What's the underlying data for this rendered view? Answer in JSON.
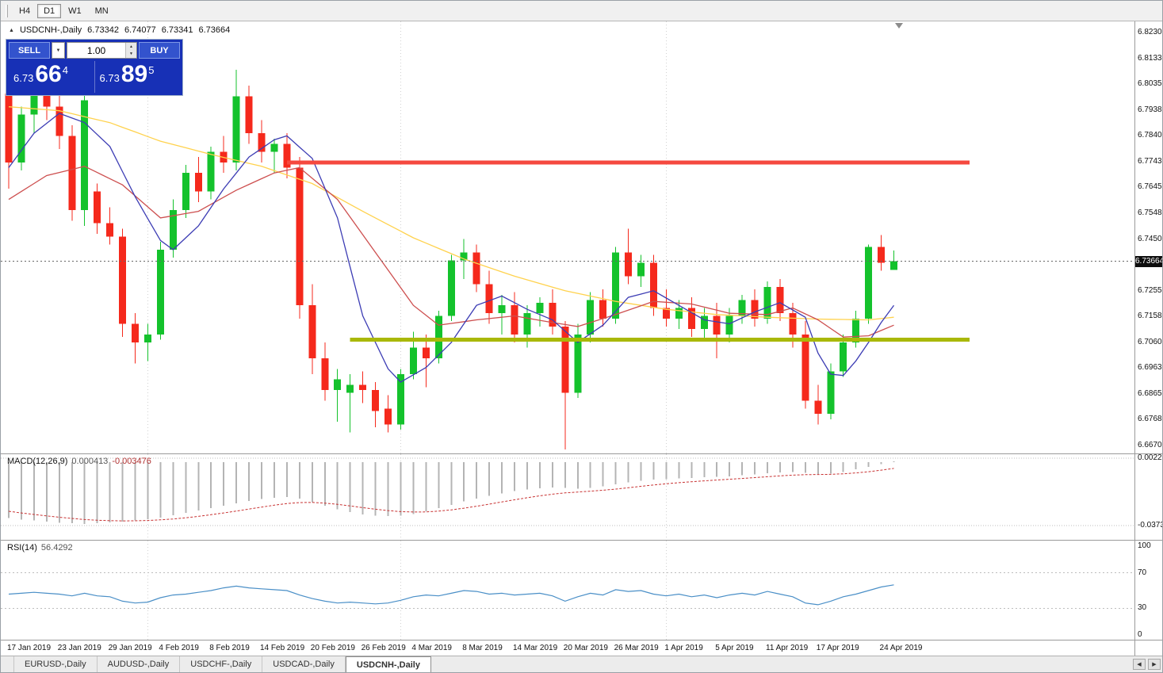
{
  "toolbar": {
    "timeframes": [
      {
        "label": "H4",
        "active": false
      },
      {
        "label": "D1",
        "active": true
      },
      {
        "label": "W1",
        "active": false
      },
      {
        "label": "MN",
        "active": false
      }
    ]
  },
  "chart_header": {
    "collapse_icon": "▲",
    "symbol": "USDCNH-,Daily",
    "open": "6.73342",
    "high": "6.74077",
    "low": "6.73341",
    "close": "6.73664"
  },
  "trade_panel": {
    "sell_label": "SELL",
    "buy_label": "BUY",
    "volume": "1.00",
    "dropdown_icon": "▼",
    "spin_up_icon": "▲",
    "spin_down_icon": "▼",
    "sell_price": {
      "small": "6.73",
      "big": "66",
      "sup": "4"
    },
    "buy_price": {
      "small": "6.73",
      "big": "89",
      "sup": "5"
    }
  },
  "macd_panel": {
    "title": "MACD(12,26,9)",
    "value_main": "0.000413",
    "value_signal": "-0.003476"
  },
  "rsi_panel": {
    "title": "RSI(14)",
    "value": "56.4292"
  },
  "tabs": {
    "items": [
      {
        "label": "EURUSD-,Daily",
        "active": false
      },
      {
        "label": "AUDUSD-,Daily",
        "active": false
      },
      {
        "label": "USDCHF-,Daily",
        "active": false
      },
      {
        "label": "USDCAD-,Daily",
        "active": false
      },
      {
        "label": "USDCNH-,Daily",
        "active": true
      }
    ]
  },
  "scroll_arrows": {
    "left": "◀",
    "right": "▶"
  },
  "colors": {
    "bull": "#14c22c",
    "bear": "#f5291c",
    "ma_fast": "#3c3cb4",
    "ma_mid": "#cd4f4f",
    "ma_slow": "#ffd24d",
    "resistance": "#f5493f",
    "support": "#a9b808",
    "macd_hist": "#b4b4b4",
    "macd_signal": "#c83232",
    "rsi_line": "#4a8fc7"
  },
  "chart_data": {
    "type": "candlestick",
    "symbol": "USDCNH",
    "timeframe": "Daily",
    "current_price": 6.73664,
    "visible_range": {
      "price_top": 6.82305,
      "price_bottom": 6.66705
    },
    "price_axis_labels": [
      "6.82305",
      "6.81330",
      "6.80355",
      "6.79380",
      "6.78405",
      "6.77430",
      "6.76455",
      "6.75480",
      "6.74505",
      "6.73530",
      "6.72555",
      "6.71580",
      "6.70605",
      "6.69630",
      "6.68655",
      "6.67680",
      "6.66705"
    ],
    "x_axis_labels": [
      {
        "text": "17 Jan 2019",
        "index": 0
      },
      {
        "text": "23 Jan 2019",
        "index": 4
      },
      {
        "text": "29 Jan 2019",
        "index": 8
      },
      {
        "text": "4 Feb 2019",
        "index": 12
      },
      {
        "text": "8 Feb 2019",
        "index": 16
      },
      {
        "text": "14 Feb 2019",
        "index": 20
      },
      {
        "text": "20 Feb 2019",
        "index": 24
      },
      {
        "text": "26 Feb 2019",
        "index": 28
      },
      {
        "text": "4 Mar 2019",
        "index": 32
      },
      {
        "text": "8 Mar 2019",
        "index": 36
      },
      {
        "text": "14 Mar 2019",
        "index": 40
      },
      {
        "text": "20 Mar 2019",
        "index": 44
      },
      {
        "text": "26 Mar 2019",
        "index": 48
      },
      {
        "text": "1 Apr 2019",
        "index": 52
      },
      {
        "text": "5 Apr 2019",
        "index": 56
      },
      {
        "text": "11 Apr 2019",
        "index": 60
      },
      {
        "text": "17 Apr 2019",
        "index": 64
      },
      {
        "text": "24 Apr 2019",
        "index": 69
      }
    ],
    "month_separator_indices": [
      11,
      31,
      52
    ],
    "ohlc": [
      [
        6.8,
        6.803,
        6.764,
        6.774
      ],
      [
        6.774,
        6.795,
        6.771,
        6.792
      ],
      [
        6.792,
        6.804,
        6.785,
        6.8
      ],
      [
        6.8,
        6.809,
        6.79,
        6.795
      ],
      [
        6.795,
        6.8,
        6.779,
        6.784
      ],
      [
        6.784,
        6.788,
        6.752,
        6.756
      ],
      [
        6.756,
        6.801,
        6.75,
        6.7975
      ],
      [
        6.763,
        6.766,
        6.747,
        6.751
      ],
      [
        6.751,
        6.757,
        6.743,
        6.746
      ],
      [
        6.746,
        6.749,
        6.708,
        6.713
      ],
      [
        6.713,
        6.717,
        6.698,
        6.706
      ],
      [
        6.706,
        6.713,
        6.699,
        6.709
      ],
      [
        6.709,
        6.744,
        6.707,
        6.741
      ],
      [
        6.741,
        6.76,
        6.738,
        6.756
      ],
      [
        6.756,
        6.773,
        6.753,
        6.77
      ],
      [
        6.77,
        6.776,
        6.759,
        6.763
      ],
      [
        6.763,
        6.78,
        6.76,
        6.778
      ],
      [
        6.778,
        6.784,
        6.77,
        6.774
      ],
      [
        6.774,
        6.809,
        6.771,
        6.799
      ],
      [
        6.799,
        6.803,
        6.781,
        6.785
      ],
      [
        6.785,
        6.79,
        6.774,
        6.778
      ],
      [
        6.778,
        6.783,
        6.77,
        6.781
      ],
      [
        6.781,
        6.785,
        6.768,
        6.772
      ],
      [
        6.772,
        6.776,
        6.715,
        6.72
      ],
      [
        6.72,
        6.728,
        6.694,
        6.7
      ],
      [
        6.7,
        6.706,
        6.684,
        6.688
      ],
      [
        6.688,
        6.696,
        6.676,
        6.692
      ],
      [
        6.687,
        6.694,
        6.672,
        6.69
      ],
      [
        6.69,
        6.695,
        6.683,
        6.688
      ],
      [
        6.688,
        6.691,
        6.674,
        6.68
      ],
      [
        6.681,
        6.686,
        6.672,
        6.675
      ],
      [
        6.675,
        6.696,
        6.673,
        6.694
      ],
      [
        6.694,
        6.71,
        6.692,
        6.704
      ],
      [
        6.704,
        6.709,
        6.689,
        6.7
      ],
      [
        6.7,
        6.718,
        6.698,
        6.716
      ],
      [
        6.716,
        6.739,
        6.714,
        6.737
      ],
      [
        6.737,
        6.745,
        6.73,
        6.74
      ],
      [
        6.74,
        6.743,
        6.725,
        6.728
      ],
      [
        6.728,
        6.733,
        6.713,
        6.717
      ],
      [
        6.717,
        6.724,
        6.709,
        6.72
      ],
      [
        6.72,
        6.725,
        6.706,
        6.709
      ],
      [
        6.709,
        6.72,
        6.704,
        6.717
      ],
      [
        6.717,
        6.723,
        6.712,
        6.721
      ],
      [
        6.721,
        6.726,
        6.709,
        6.712
      ],
      [
        6.712,
        6.714,
        6.6655,
        6.687
      ],
      [
        6.687,
        6.713,
        6.685,
        6.709
      ],
      [
        6.709,
        6.725,
        6.706,
        6.722
      ],
      [
        6.722,
        6.726,
        6.712,
        6.715
      ],
      [
        6.715,
        6.742,
        6.713,
        6.74
      ],
      [
        6.74,
        6.749,
        6.728,
        6.731
      ],
      [
        6.731,
        6.739,
        6.727,
        6.736
      ],
      [
        6.736,
        6.739,
        6.716,
        6.719
      ],
      [
        6.719,
        6.726,
        6.712,
        6.715
      ],
      [
        6.715,
        6.722,
        6.711,
        6.719
      ],
      [
        6.719,
        6.723,
        6.708,
        6.711
      ],
      [
        6.711,
        6.719,
        6.707,
        6.716
      ],
      [
        6.716,
        6.721,
        6.7,
        6.709
      ],
      [
        6.709,
        6.719,
        6.706,
        6.716
      ],
      [
        6.716,
        6.724,
        6.713,
        6.722
      ],
      [
        6.722,
        6.726,
        6.712,
        6.715
      ],
      [
        6.715,
        6.729,
        6.713,
        6.727
      ],
      [
        6.727,
        6.73,
        6.714,
        6.717
      ],
      [
        6.717,
        6.721,
        6.704,
        6.709
      ],
      [
        6.709,
        6.714,
        6.681,
        6.684
      ],
      [
        6.684,
        6.69,
        6.675,
        6.679
      ],
      [
        6.679,
        6.698,
        6.677,
        6.695
      ],
      [
        6.695,
        6.709,
        6.693,
        6.706
      ],
      [
        6.706,
        6.718,
        6.704,
        6.715
      ],
      [
        6.715,
        6.743,
        6.713,
        6.742
      ],
      [
        6.742,
        6.7465,
        6.733,
        6.736
      ],
      [
        6.73342,
        6.74077,
        6.73341,
        6.73664
      ]
    ],
    "hlines": [
      {
        "name": "resistance-line",
        "price": 6.774,
        "from_index": 22,
        "to_index": 76,
        "color_key": "resistance",
        "width": 5
      },
      {
        "name": "support-line",
        "price": 6.707,
        "from_index": 27,
        "to_index": 76,
        "color_key": "support",
        "width": 5
      }
    ],
    "ma_lines": [
      {
        "name": "ma-slow-yellow",
        "color_key": "ma_slow",
        "points": [
          [
            0,
            6.795
          ],
          [
            4,
            6.7935
          ],
          [
            8,
            6.789
          ],
          [
            12,
            6.782
          ],
          [
            16,
            6.777
          ],
          [
            20,
            6.7725
          ],
          [
            24,
            6.766
          ],
          [
            28,
            6.7555
          ],
          [
            32,
            6.7455
          ],
          [
            36,
            6.7375
          ],
          [
            40,
            6.731
          ],
          [
            44,
            6.7255
          ],
          [
            48,
            6.7215
          ],
          [
            52,
            6.7185
          ],
          [
            56,
            6.7165
          ],
          [
            60,
            6.7155
          ],
          [
            64,
            6.7148
          ],
          [
            68,
            6.7145
          ],
          [
            70,
            6.7155
          ]
        ]
      },
      {
        "name": "ma-mid-red",
        "color_key": "ma_mid",
        "points": [
          [
            0,
            6.76
          ],
          [
            3,
            6.769
          ],
          [
            6,
            6.7725
          ],
          [
            9,
            6.7655
          ],
          [
            12,
            6.753
          ],
          [
            15,
            6.7555
          ],
          [
            18,
            6.7635
          ],
          [
            21,
            6.77
          ],
          [
            23,
            6.772
          ],
          [
            26,
            6.76
          ],
          [
            29,
            6.74
          ],
          [
            32,
            6.72
          ],
          [
            34,
            6.7125
          ],
          [
            37,
            6.7145
          ],
          [
            40,
            6.716
          ],
          [
            43,
            6.7135
          ],
          [
            45,
            6.712
          ],
          [
            48,
            6.7165
          ],
          [
            51,
            6.7215
          ],
          [
            54,
            6.7205
          ],
          [
            57,
            6.717
          ],
          [
            60,
            6.7165
          ],
          [
            62,
            6.719
          ],
          [
            64,
            6.7145
          ],
          [
            66,
            6.708
          ],
          [
            68,
            6.7085
          ],
          [
            70,
            6.7125
          ]
        ]
      },
      {
        "name": "ma-fast-blue",
        "color_key": "ma_fast",
        "points": [
          [
            0,
            6.772
          ],
          [
            2,
            6.785
          ],
          [
            4,
            6.7925
          ],
          [
            6,
            6.789
          ],
          [
            8,
            6.78
          ],
          [
            10,
            6.761
          ],
          [
            12,
            6.7445
          ],
          [
            13,
            6.741
          ],
          [
            15,
            6.75
          ],
          [
            17,
            6.764
          ],
          [
            19,
            6.776
          ],
          [
            21,
            6.7825
          ],
          [
            22,
            6.784
          ],
          [
            24,
            6.7755
          ],
          [
            26,
            6.753
          ],
          [
            28,
            6.716
          ],
          [
            30,
            6.696
          ],
          [
            31,
            6.691
          ],
          [
            33,
            6.6965
          ],
          [
            35,
            6.706
          ],
          [
            37,
            6.72
          ],
          [
            39,
            6.7235
          ],
          [
            41,
            6.7185
          ],
          [
            43,
            6.7145
          ],
          [
            45,
            6.706
          ],
          [
            47,
            6.7125
          ],
          [
            49,
            6.723
          ],
          [
            51,
            6.7255
          ],
          [
            53,
            6.72
          ],
          [
            55,
            6.7145
          ],
          [
            57,
            6.713
          ],
          [
            59,
            6.7175
          ],
          [
            61,
            6.721
          ],
          [
            63,
            6.7155
          ],
          [
            64,
            6.702
          ],
          [
            65,
            6.694
          ],
          [
            66,
            6.6935
          ],
          [
            67,
            6.699
          ],
          [
            68,
            6.706
          ],
          [
            69,
            6.7135
          ],
          [
            70,
            6.72
          ]
        ]
      }
    ],
    "macd": {
      "signal_period": 9,
      "signal_seed": -0.028,
      "scale": {
        "top": 0.002212,
        "bottom": -0.037368
      },
      "histogram": [
        -0.033,
        -0.0338,
        -0.0344,
        -0.035,
        -0.0356,
        -0.036,
        -0.0364,
        -0.036,
        -0.0355,
        -0.035,
        -0.0344,
        -0.0336,
        -0.0326,
        -0.0314,
        -0.03,
        -0.0286,
        -0.0272,
        -0.0258,
        -0.0244,
        -0.023,
        -0.0218,
        -0.021,
        -0.0206,
        -0.0215,
        -0.0235,
        -0.0258,
        -0.0278,
        -0.0295,
        -0.0308,
        -0.0315,
        -0.0318,
        -0.0315,
        -0.0305,
        -0.029,
        -0.0272,
        -0.0252,
        -0.0232,
        -0.0214,
        -0.0198,
        -0.0184,
        -0.0172,
        -0.0162,
        -0.0154,
        -0.015,
        -0.0152,
        -0.0156,
        -0.0152,
        -0.0144,
        -0.0132,
        -0.012,
        -0.011,
        -0.0104,
        -0.01,
        -0.0096,
        -0.0094,
        -0.009,
        -0.0088,
        -0.0084,
        -0.0078,
        -0.0072,
        -0.0066,
        -0.0062,
        -0.006,
        -0.0064,
        -0.007,
        -0.0068,
        -0.0058,
        -0.0044,
        -0.0028,
        -0.0012,
        0.000413
      ]
    },
    "rsi": {
      "levels": [
        70,
        30
      ],
      "axis_values": [
        100,
        70,
        30,
        0
      ],
      "values": [
        46,
        47,
        48,
        47,
        46,
        44,
        47,
        44,
        43,
        38,
        36,
        37,
        42,
        45,
        46,
        48,
        50,
        53,
        55,
        53,
        52,
        51,
        50,
        45,
        41,
        38,
        36,
        37,
        36,
        35,
        36,
        39,
        43,
        45,
        44,
        47,
        50,
        49,
        46,
        47,
        45,
        46,
        47,
        44,
        38,
        43,
        47,
        45,
        51,
        49,
        50,
        46,
        44,
        46,
        43,
        45,
        42,
        45,
        47,
        45,
        49,
        46,
        43,
        36,
        34,
        38,
        43,
        46,
        50,
        54,
        56.4292
      ]
    }
  }
}
